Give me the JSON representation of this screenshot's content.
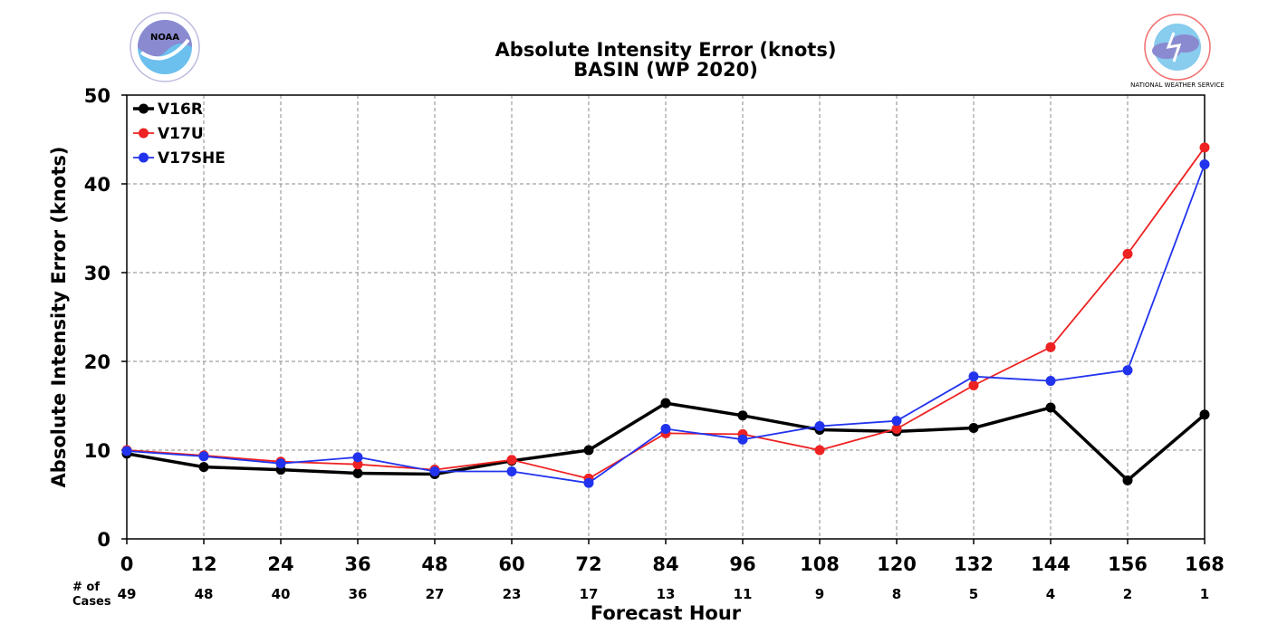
{
  "chart_data": {
    "type": "line",
    "title": "Absolute Intensity Error (knots)",
    "subtitle": "BASIN (WP 2020)",
    "xlabel": "Forecast Hour",
    "ylabel": "Absolute Intensity Error (knots)",
    "x": [
      0,
      12,
      24,
      36,
      48,
      60,
      72,
      84,
      96,
      108,
      120,
      132,
      144,
      156,
      168
    ],
    "xlim": [
      0,
      168
    ],
    "ylim": [
      0,
      50
    ],
    "yticks": [
      0,
      10,
      20,
      30,
      40,
      50
    ],
    "grid": true,
    "legend_position": "top-left",
    "cases_label": "# of Cases",
    "cases": [
      49,
      48,
      40,
      36,
      27,
      23,
      17,
      13,
      11,
      9,
      8,
      5,
      4,
      2,
      1
    ],
    "series": [
      {
        "name": "V16R",
        "color": "#000000",
        "values": [
          9.6,
          8.1,
          7.8,
          7.4,
          7.3,
          8.8,
          10.0,
          15.3,
          13.9,
          12.3,
          12.1,
          12.5,
          14.8,
          6.6,
          14.0
        ]
      },
      {
        "name": "V17U",
        "color": "#ee2222",
        "values": [
          10.0,
          9.4,
          8.7,
          8.4,
          7.8,
          8.9,
          6.8,
          11.9,
          11.8,
          10.0,
          12.4,
          17.3,
          21.6,
          32.1,
          44.1
        ]
      },
      {
        "name": "V17SHE",
        "color": "#2233ee",
        "values": [
          9.9,
          9.3,
          8.5,
          9.2,
          7.6,
          7.6,
          6.3,
          12.4,
          11.2,
          12.7,
          13.3,
          18.3,
          17.8,
          19.0,
          42.2
        ]
      }
    ]
  },
  "logos": {
    "left": {
      "icon": "noaa-logo",
      "text": "NOAA",
      "colors": [
        "#8a8ad0",
        "#6cc0ee"
      ]
    },
    "right": {
      "icon": "nws-logo",
      "text": "NATIONAL WEATHER SERVICE",
      "colors": [
        "#f07070",
        "#8a8ad0",
        "#88ccee"
      ]
    }
  }
}
